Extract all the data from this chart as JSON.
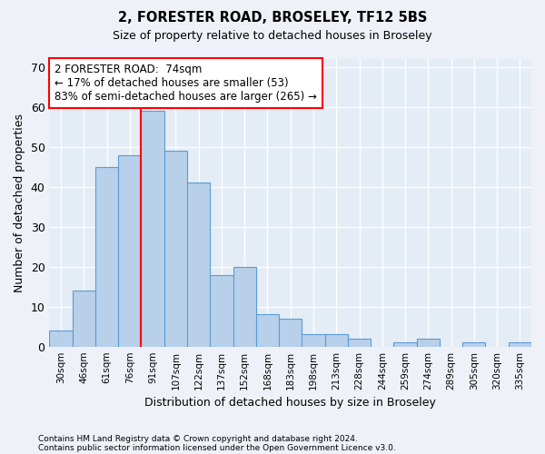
{
  "title1": "2, FORESTER ROAD, BROSELEY, TF12 5BS",
  "title2": "Size of property relative to detached houses in Broseley",
  "xlabel": "Distribution of detached houses by size in Broseley",
  "ylabel": "Number of detached properties",
  "categories": [
    "30sqm",
    "46sqm",
    "61sqm",
    "76sqm",
    "91sqm",
    "107sqm",
    "122sqm",
    "137sqm",
    "152sqm",
    "168sqm",
    "183sqm",
    "198sqm",
    "213sqm",
    "228sqm",
    "244sqm",
    "259sqm",
    "274sqm",
    "289sqm",
    "305sqm",
    "320sqm",
    "335sqm"
  ],
  "values": [
    4,
    14,
    45,
    48,
    59,
    49,
    41,
    18,
    20,
    8,
    7,
    3,
    3,
    2,
    0,
    1,
    2,
    0,
    1,
    0,
    1
  ],
  "bar_color": "#b8d0ea",
  "bar_edge_color": "#5b9bd5",
  "vline_x": 3.5,
  "vline_color": "red",
  "annotation_text": "2 FORESTER ROAD:  74sqm\n← 17% of detached houses are smaller (53)\n83% of semi-detached houses are larger (265) →",
  "annotation_box_color": "white",
  "annotation_box_edge": "red",
  "ylim": [
    0,
    72
  ],
  "yticks": [
    0,
    10,
    20,
    30,
    40,
    50,
    60,
    70
  ],
  "footnote1": "Contains HM Land Registry data © Crown copyright and database right 2024.",
  "footnote2": "Contains public sector information licensed under the Open Government Licence v3.0.",
  "bg_color": "#eef2f8",
  "plot_bg_color": "#e4ecf6"
}
